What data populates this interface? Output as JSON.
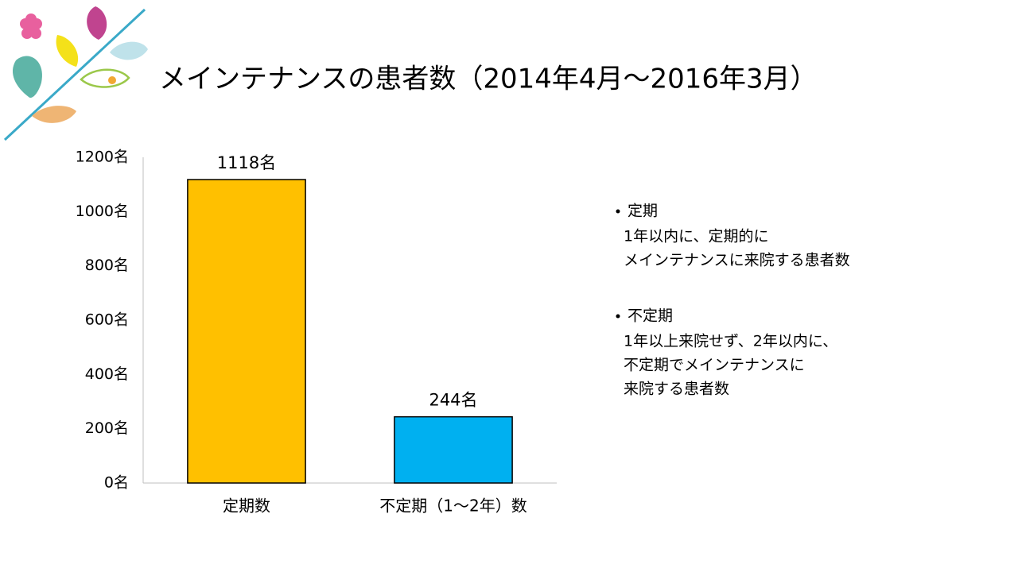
{
  "chart_data": {
    "type": "bar",
    "title": "メインテナンスの患者数（2014年4月～2016年3月）",
    "categories": [
      "定期数",
      "不定期（1～2年）数"
    ],
    "values": [
      1118,
      244
    ],
    "value_labels": [
      "1118名",
      "244名"
    ],
    "colors": [
      "#FFC000",
      "#00B0F0"
    ],
    "ylim": [
      0,
      1200
    ],
    "yticks": [
      {
        "value": 0,
        "label": "0名"
      },
      {
        "value": 200,
        "label": "200名"
      },
      {
        "value": 400,
        "label": "400名"
      },
      {
        "value": 600,
        "label": "600名"
      },
      {
        "value": 800,
        "label": "800名"
      },
      {
        "value": 1000,
        "label": "1000名"
      },
      {
        "value": 1200,
        "label": "1200名"
      }
    ]
  },
  "notes": [
    {
      "heading": "定期",
      "lines": [
        "1年以内に、定期的に",
        "メインテナンスに来院する患者数"
      ]
    },
    {
      "heading": "不定期",
      "lines": [
        "1年以上来院せず、2年以内に、",
        "不定期でメインテナンスに",
        "来院する患者数"
      ]
    }
  ]
}
